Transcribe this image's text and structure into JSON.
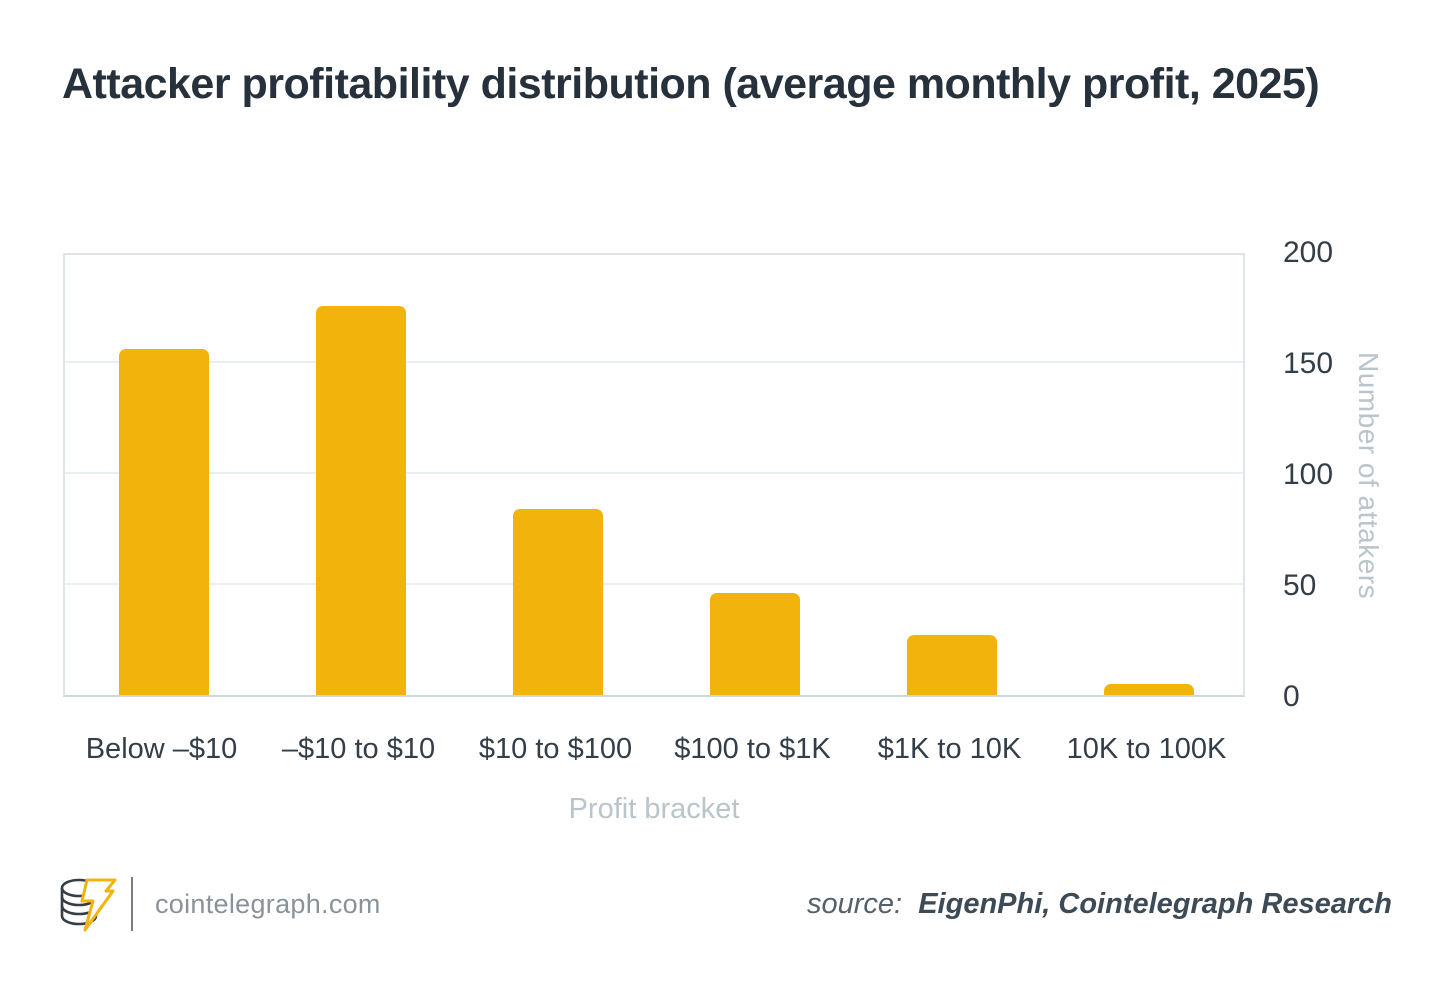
{
  "page": {
    "title": "Attacker profitability distribution (average monthly profit, 2025)"
  },
  "chart_data": {
    "type": "bar",
    "title": "Attacker profitability distribution (average monthly profit, 2025)",
    "categories": [
      "Below –$10",
      "–$10 to $10",
      "$10 to $100",
      "$100 to $1K",
      "$1K to 10K",
      "10K to 100K"
    ],
    "values": [
      156,
      175,
      84,
      46,
      27,
      5
    ],
    "xlabel": "Profit bracket",
    "ylabel": "Number of attakers",
    "ylim": [
      0,
      200
    ],
    "yticks": [
      0,
      50,
      100,
      150,
      200
    ],
    "bar_color": "#f2b30d",
    "grid": true,
    "legend_position": "none",
    "y_axis_side": "right"
  },
  "footer": {
    "logo_icon": "cointelegraph-logo",
    "site": "cointelegraph.com",
    "source_label": "source:",
    "source_value": "EigenPhi, Cointelegraph Research"
  },
  "colors": {
    "bar": "#f2b30d",
    "title_text": "#26313c",
    "tick_text": "#333e48",
    "muted_text": "#b9c4cb",
    "gridline": "#e9eff2",
    "plot_border": "#dde5e9",
    "background": "#ffffff"
  }
}
